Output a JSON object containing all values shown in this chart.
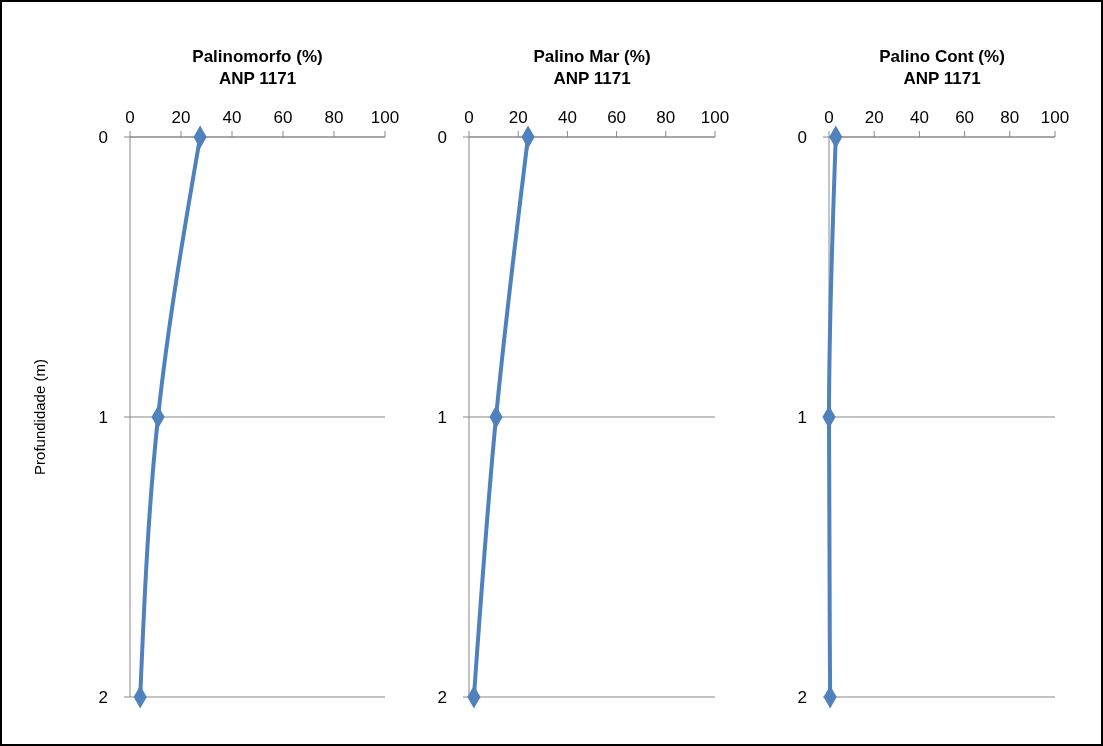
{
  "chart_data": [
    {
      "type": "line",
      "title": "Palinomorfo (%)",
      "subtitle": "ANP 1171",
      "ylabel": "Profundidade (m)",
      "x": [
        27.5,
        11,
        4
      ],
      "series": [
        {
          "color": "#4f81bd",
          "values": [
            0,
            1,
            2
          ]
        }
      ],
      "xlim": [
        0,
        100
      ],
      "xticks": [
        0,
        20,
        40,
        60,
        80,
        100
      ],
      "ylim": [
        2,
        0
      ],
      "yticks": [
        0,
        1,
        2
      ],
      "grid": "y",
      "marker": "diamond",
      "line_style": "solid"
    },
    {
      "type": "line",
      "title": "Palino Mar (%)",
      "subtitle": "ANP 1171",
      "x": [
        24,
        11,
        2
      ],
      "series": [
        {
          "color": "#4f81bd",
          "values": [
            0,
            1,
            2
          ]
        }
      ],
      "xlim": [
        0,
        100
      ],
      "xticks": [
        0,
        20,
        40,
        60,
        80,
        100
      ],
      "ylim": [
        2,
        0
      ],
      "yticks": [
        0,
        1,
        2
      ],
      "grid": "y",
      "marker": "diamond",
      "line_style": "solid"
    },
    {
      "type": "line",
      "title": "Palino Cont (%)",
      "subtitle": "ANP 1171",
      "x": [
        3,
        0,
        0.5
      ],
      "series": [
        {
          "color": "#4f81bd",
          "values": [
            0,
            1,
            2
          ]
        }
      ],
      "xlim": [
        0,
        100
      ],
      "xticks": [
        0,
        20,
        40,
        60,
        80,
        100
      ],
      "ylim": [
        2,
        0
      ],
      "yticks": [
        0,
        1,
        2
      ],
      "grid": "y",
      "marker": "diamond",
      "line_style": "solid"
    }
  ]
}
